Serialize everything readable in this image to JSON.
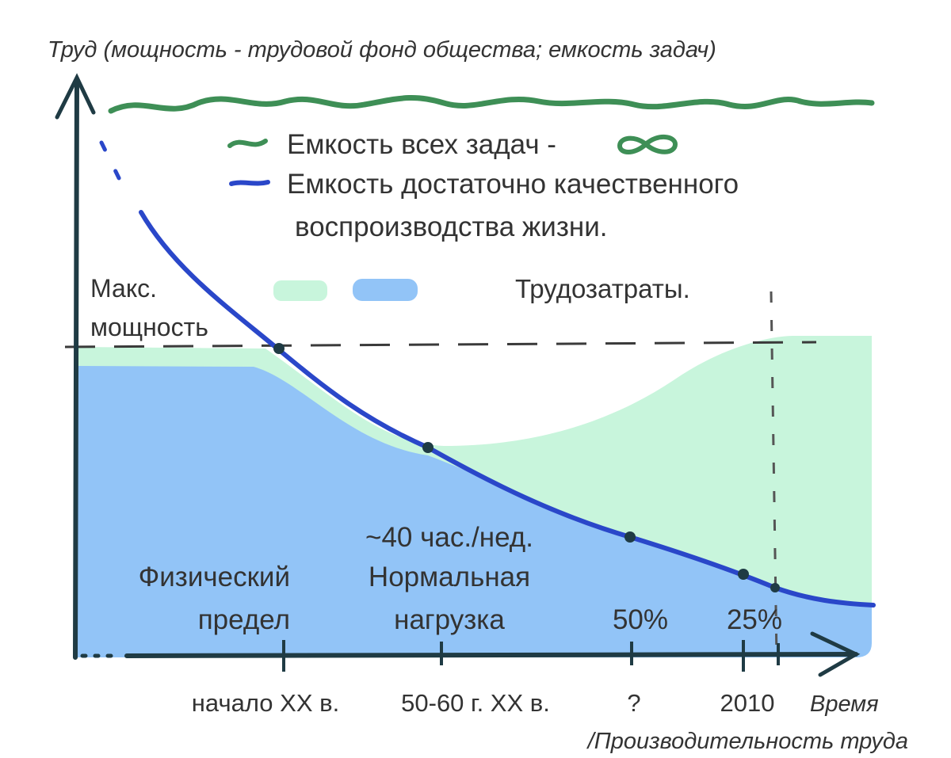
{
  "y_axis_label": "Труд (мощность - трудовой фонд общества; емкость задач)",
  "x_axis_label_line1": "Время",
  "x_axis_label_line2": "/Производительность труда",
  "legend": {
    "all_tasks": "Емкость всех задач  -",
    "quality_line1": "Емкость достаточно качественного",
    "quality_line2": "воспроизводства жизни.",
    "labor_costs": "Трудозатраты."
  },
  "max_power_line1": "Макс.",
  "max_power_line2": "мощность",
  "regions": {
    "physical_line1": "Физический",
    "physical_line2": "предел",
    "hours": "~40 час./нед.",
    "normal_line1": "Нормальная",
    "normal_line2": "нагрузка",
    "pct50": "50%",
    "pct25": "25%"
  },
  "x_ticks": [
    "начало XX в.",
    "50-60 г. XX в.",
    "?",
    "2010"
  ],
  "colors": {
    "green_wave": "#3e8f56",
    "blue_curve": "#2a47c9",
    "blue_fill": "#92c4f7",
    "green_fill": "#c8f5dc",
    "axis": "#1f3b44",
    "text": "#333333"
  }
}
